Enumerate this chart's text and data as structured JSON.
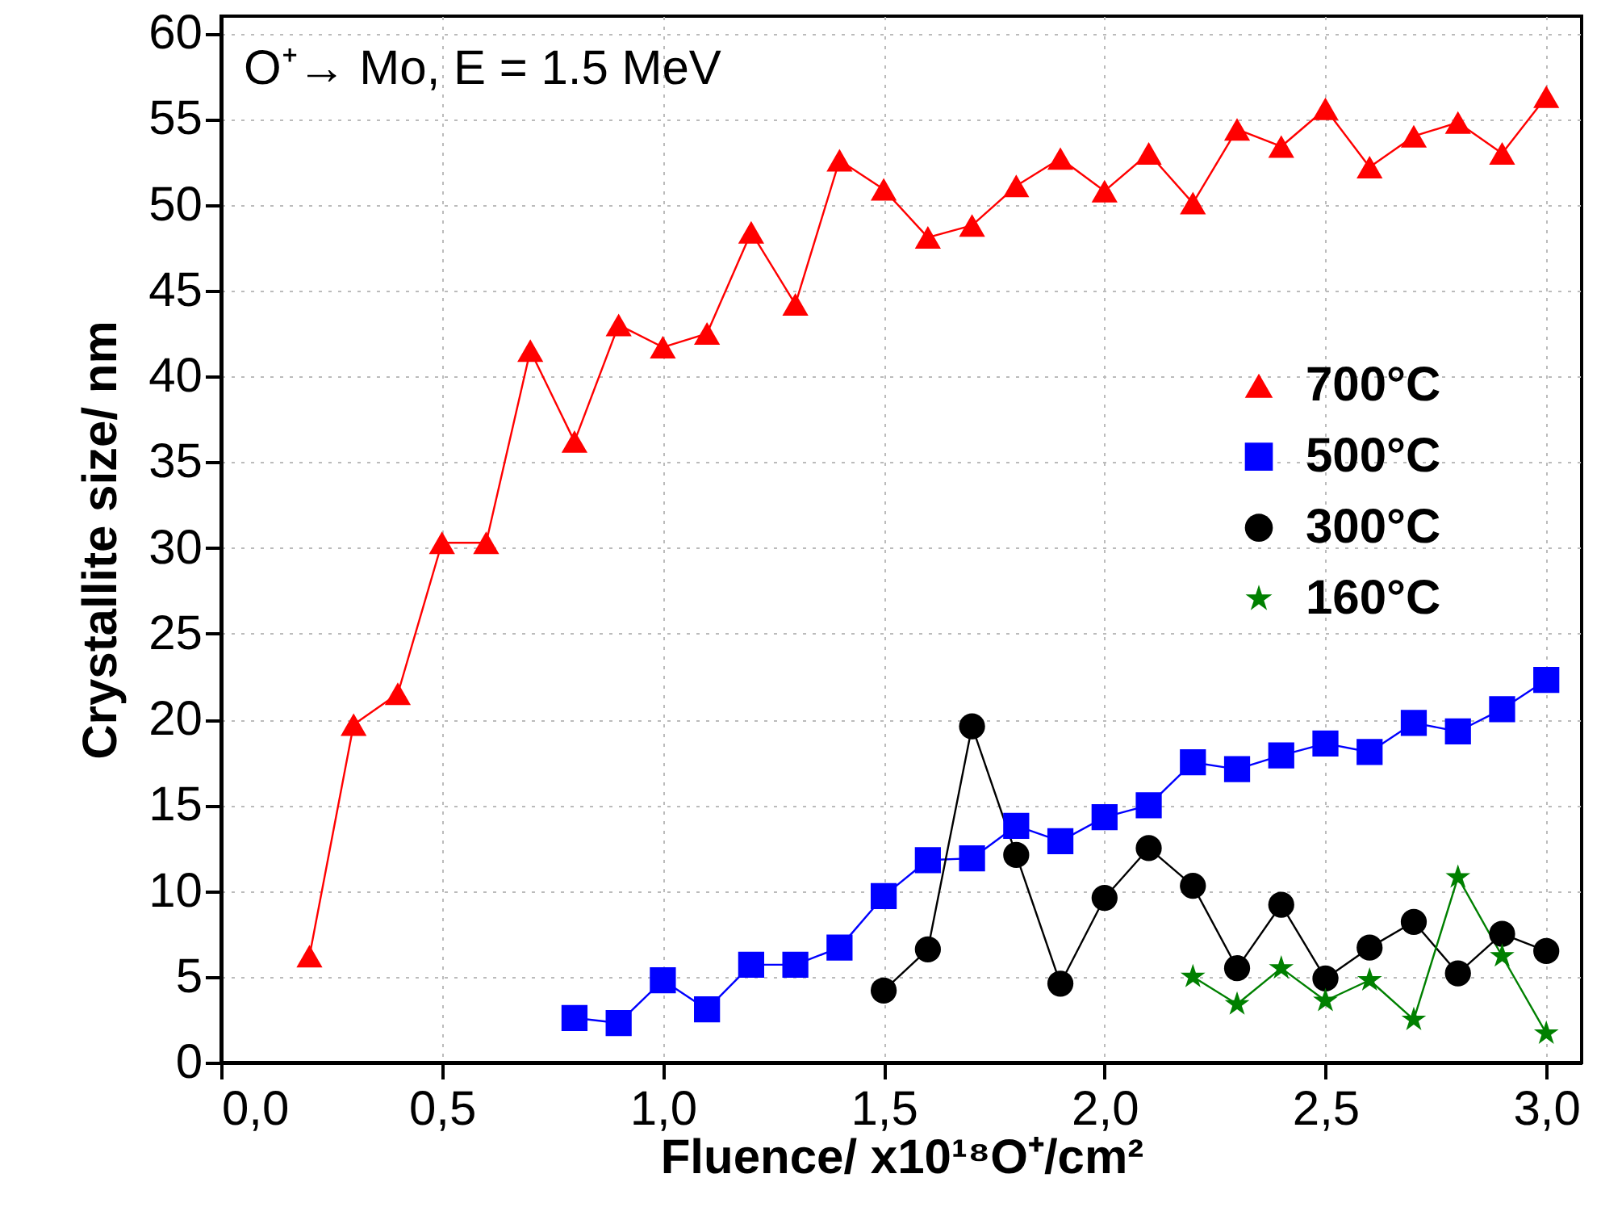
{
  "chart_data": {
    "type": "line",
    "xlabel": "Fluence/ x10¹⁸O⁺/cm²",
    "ylabel": "Crystallite size/ nm",
    "annotations": [
      "O⁺→  Mo, E = 1.5 MeV"
    ],
    "xlim": [
      0,
      3.08
    ],
    "ylim": [
      0,
      61
    ],
    "xticks": [
      {
        "value": 0,
        "label": "0,0"
      },
      {
        "value": 0.5,
        "label": "0,5"
      },
      {
        "value": 1,
        "label": "1,0"
      },
      {
        "value": 1.5,
        "label": "1,5"
      },
      {
        "value": 2,
        "label": "2,0"
      },
      {
        "value": 2.5,
        "label": "2,5"
      },
      {
        "value": 3,
        "label": "3,0"
      }
    ],
    "yticks": [
      0,
      5,
      10,
      15,
      20,
      25,
      30,
      35,
      40,
      45,
      50,
      55,
      60
    ],
    "grid": true,
    "legend": "right",
    "line_style": "solid",
    "series": [
      {
        "name": "700°C",
        "color": "#ff0000",
        "marker": "triangle",
        "x": [
          0.2,
          0.3,
          0.4,
          0.5,
          0.6,
          0.7,
          0.8,
          0.9,
          1.0,
          1.1,
          1.2,
          1.3,
          1.4,
          1.5,
          1.6,
          1.7,
          1.8,
          1.9,
          2.0,
          2.1,
          2.2,
          2.3,
          2.4,
          2.5,
          2.6,
          2.7,
          2.8,
          2.9,
          3.0
        ],
        "values": [
          6.2,
          19.7,
          21.5,
          30.3,
          30.3,
          41.5,
          36.2,
          43.0,
          41.7,
          42.5,
          48.4,
          44.2,
          52.6,
          50.9,
          48.1,
          48.8,
          51.1,
          52.7,
          50.8,
          53.0,
          50.1,
          54.4,
          53.4,
          55.6,
          52.2,
          54.0,
          54.8,
          53.0,
          56.3
        ]
      },
      {
        "name": "500°C",
        "color": "#0000ff",
        "marker": "square",
        "x": [
          0.8,
          0.9,
          1.0,
          1.1,
          1.2,
          1.3,
          1.4,
          1.5,
          1.6,
          1.7,
          1.8,
          1.9,
          2.0,
          2.1,
          2.2,
          2.3,
          2.4,
          2.5,
          2.6,
          2.7,
          2.8,
          2.9,
          3.0
        ],
        "values": [
          2.6,
          2.3,
          4.8,
          3.1,
          5.7,
          5.7,
          6.7,
          9.7,
          11.8,
          11.9,
          13.8,
          12.9,
          14.3,
          15.0,
          17.5,
          17.1,
          17.9,
          18.6,
          18.1,
          19.8,
          19.3,
          20.6,
          22.3
        ]
      },
      {
        "name": "300°C",
        "color": "#000000",
        "marker": "circle",
        "x": [
          1.5,
          1.6,
          1.7,
          1.8,
          1.9,
          2.0,
          2.1,
          2.2,
          2.3,
          2.4,
          2.5,
          2.6,
          2.7,
          2.8,
          2.9,
          3.0
        ],
        "values": [
          4.2,
          6.6,
          19.6,
          12.1,
          4.6,
          9.6,
          12.5,
          10.3,
          5.5,
          9.2,
          4.9,
          6.7,
          8.2,
          5.2,
          7.5,
          6.5
        ]
      },
      {
        "name": "160°C",
        "color": "#008000",
        "marker": "star",
        "x": [
          2.2,
          2.3,
          2.4,
          2.5,
          2.6,
          2.7,
          2.8,
          2.9,
          3.0
        ],
        "values": [
          5.0,
          3.4,
          5.5,
          3.6,
          4.8,
          2.5,
          10.8,
          6.2,
          1.7
        ]
      }
    ]
  }
}
